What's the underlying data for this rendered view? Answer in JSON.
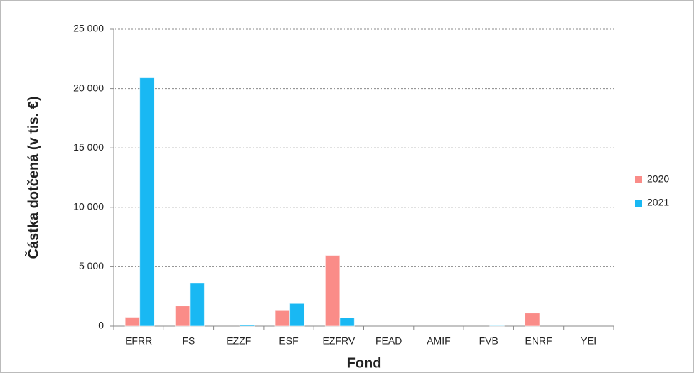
{
  "chart_data": {
    "type": "bar",
    "x_label": "Fond",
    "y_label": "Částka dotčená (v tis. €)",
    "categories": [
      "EFRR",
      "FS",
      "EZZF",
      "ESF",
      "EZFRV",
      "FEAD",
      "AMIF",
      "FVB",
      "ENRF",
      "YEI"
    ],
    "series": [
      {
        "name": "2020",
        "color": "#fa8c88",
        "values": [
          750,
          1700,
          0,
          1300,
          5950,
          0,
          0,
          0,
          1100,
          0
        ]
      },
      {
        "name": "2021",
        "color": "#19b8f3",
        "values": [
          20900,
          3600,
          100,
          1900,
          700,
          0,
          0,
          30,
          0,
          0
        ]
      }
    ],
    "ylim": [
      0,
      25000
    ],
    "yticks": [
      0,
      {
        "value": 5000,
        "label": "5 000"
      },
      {
        "value": 10000,
        "label": "10 000"
      },
      {
        "value": 15000,
        "label": "15 000"
      },
      {
        "value": 20000,
        "label": "20 000"
      },
      {
        "value": 25000,
        "label": "25 000"
      }
    ],
    "grid": true,
    "legend": "right"
  }
}
